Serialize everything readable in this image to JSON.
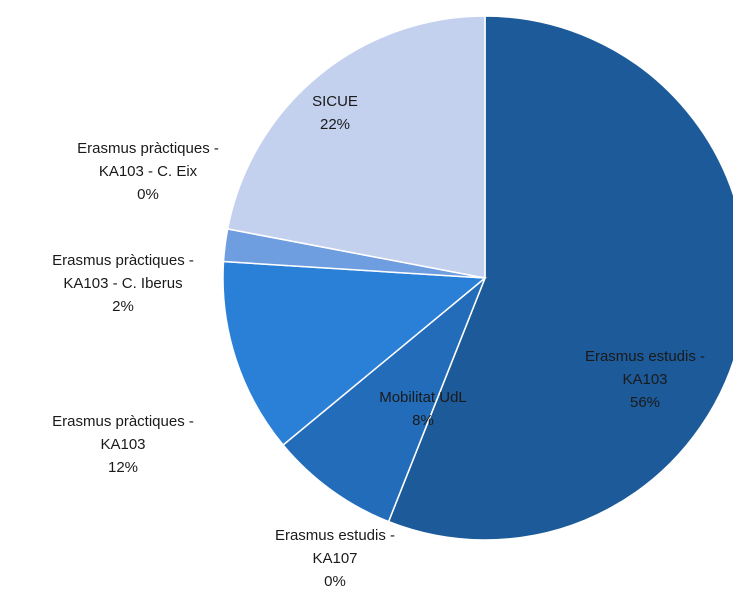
{
  "chart_data": {
    "type": "pie",
    "categories": [
      "Erasmus estudis - KA103",
      "Erasmus estudis - KA107",
      "Mobilitat UdL",
      "Erasmus pràctiques - KA103",
      "Erasmus pràctiques - KA103 - C. Iberus",
      "Erasmus pràctiques - KA103 - C. Eix",
      "SICUE"
    ],
    "values": [
      56,
      0,
      8,
      12,
      2,
      0,
      22
    ],
    "value_labels": [
      "56%",
      "0%",
      "8%",
      "12%",
      "2%",
      "0%",
      "22%"
    ],
    "colors": [
      "#1c5a99",
      "#1f62a8",
      "#236cb9",
      "#2a7fd6",
      "#6e9de0",
      "#9ab6e8",
      "#c3d0ee"
    ]
  }
}
